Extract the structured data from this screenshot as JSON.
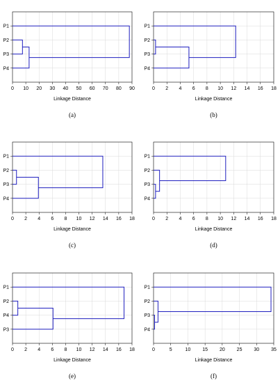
{
  "figure": {
    "panels": [
      "a",
      "b",
      "c",
      "d",
      "e",
      "f"
    ]
  },
  "chart_data": [
    {
      "type": "dendrogram",
      "panel_label": "(a)",
      "xlabel": "Linkage Distance",
      "xlim": [
        0,
        90
      ],
      "xticks": [
        0,
        10,
        20,
        30,
        40,
        50,
        60,
        70,
        80,
        90
      ],
      "leaves": [
        "P1",
        "P2",
        "P3",
        "P4"
      ],
      "merges": [
        {
          "a": "P2",
          "b": "P3",
          "distance": 7.5
        },
        {
          "a": "C1",
          "b": "P4",
          "distance": 12.5
        },
        {
          "a": "P1",
          "b": "C2",
          "distance": 88
        }
      ],
      "grid": true
    },
    {
      "type": "dendrogram",
      "panel_label": "(b)",
      "xlabel": "Linkage Distance",
      "xlim": [
        0,
        18
      ],
      "xticks": [
        0,
        2,
        4,
        6,
        8,
        10,
        12,
        14,
        16,
        18
      ],
      "leaves": [
        "P1",
        "P2",
        "P3",
        "P4"
      ],
      "merges": [
        {
          "a": "P2",
          "b": "P3",
          "distance": 0.3
        },
        {
          "a": "C1",
          "b": "P4",
          "distance": 5.3
        },
        {
          "a": "P1",
          "b": "C2",
          "distance": 12.3
        }
      ],
      "grid": true
    },
    {
      "type": "dendrogram",
      "panel_label": "(c)",
      "xlabel": "Linkage Distance",
      "xlim": [
        0,
        18
      ],
      "xticks": [
        0,
        2,
        4,
        6,
        8,
        10,
        12,
        14,
        16,
        18
      ],
      "leaves": [
        "P1",
        "P2",
        "P3",
        "P4"
      ],
      "merges": [
        {
          "a": "P2",
          "b": "P3",
          "distance": 0.6
        },
        {
          "a": "C1",
          "b": "P4",
          "distance": 3.9
        },
        {
          "a": "P1",
          "b": "C2",
          "distance": 13.6
        }
      ],
      "grid": true
    },
    {
      "type": "dendrogram",
      "panel_label": "(d)",
      "xlabel": "Linkage Distance",
      "xlim": [
        0,
        18
      ],
      "xticks": [
        0,
        2,
        4,
        6,
        8,
        10,
        12,
        14,
        16,
        18
      ],
      "leaves": [
        "P1",
        "P2",
        "P3",
        "P4"
      ],
      "merges": [
        {
          "a": "P3",
          "b": "P4",
          "distance": 0.3
        },
        {
          "a": "P2",
          "b": "C1",
          "distance": 0.9
        },
        {
          "a": "P1",
          "b": "C2",
          "distance": 10.8
        }
      ],
      "grid": true
    },
    {
      "type": "dendrogram",
      "panel_label": "(e)",
      "xlabel": "Linkage Distance",
      "xlim": [
        0,
        18
      ],
      "xticks": [
        0,
        2,
        4,
        6,
        8,
        10,
        12,
        14,
        16,
        18
      ],
      "leaves": [
        "P1",
        "P2",
        "P4",
        "P3"
      ],
      "merges": [
        {
          "a": "P2",
          "b": "P4",
          "distance": 0.8
        },
        {
          "a": "C1",
          "b": "P3",
          "distance": 6.1
        },
        {
          "a": "P1",
          "b": "C2",
          "distance": 16.8
        }
      ],
      "grid": true
    },
    {
      "type": "dendrogram",
      "panel_label": "(f)",
      "xlabel": "Linkage Distance",
      "xlim": [
        0,
        35
      ],
      "xticks": [
        0,
        5,
        10,
        15,
        20,
        25,
        30,
        35
      ],
      "leaves": [
        "P1",
        "P2",
        "P3",
        "P4"
      ],
      "merges": [
        {
          "a": "P3",
          "b": "P4",
          "distance": 0.3
        },
        {
          "a": "P2",
          "b": "C1",
          "distance": 1.3
        },
        {
          "a": "P1",
          "b": "C2",
          "distance": 34.2
        }
      ],
      "grid": true
    }
  ]
}
